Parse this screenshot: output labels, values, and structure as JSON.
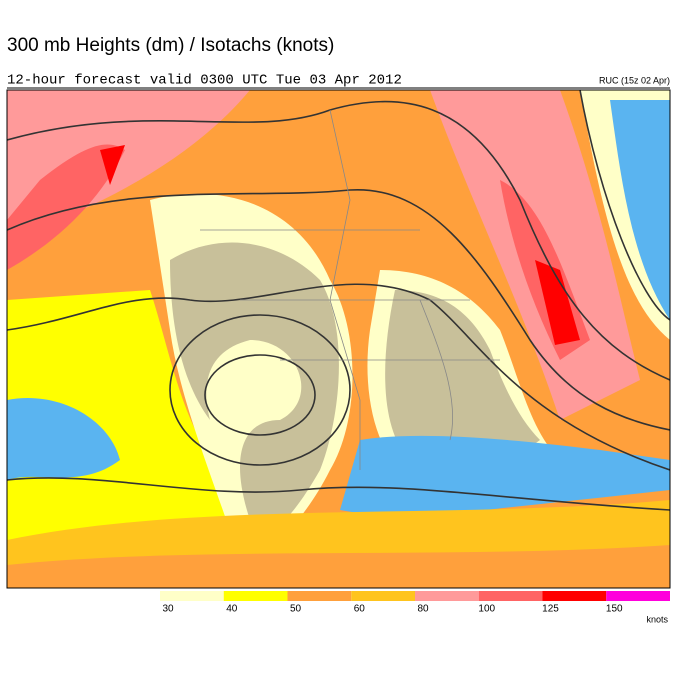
{
  "header": {
    "title": "300 mb Heights (dm) / Isotachs (knots)",
    "subtitle": "12-hour forecast valid 0300 UTC Tue 03 Apr 2012",
    "model": "RUC (15z 02 Apr)"
  },
  "legend": {
    "units": "knots",
    "levels": [
      30,
      40,
      50,
      60,
      80,
      100,
      125,
      150
    ],
    "colors": [
      "#ffffc8",
      "#ffff00",
      "#ffa03c",
      "#ffc41e",
      "#ff9a9a",
      "#ff6464",
      "#ff0000",
      "#ff00dc"
    ]
  }
}
